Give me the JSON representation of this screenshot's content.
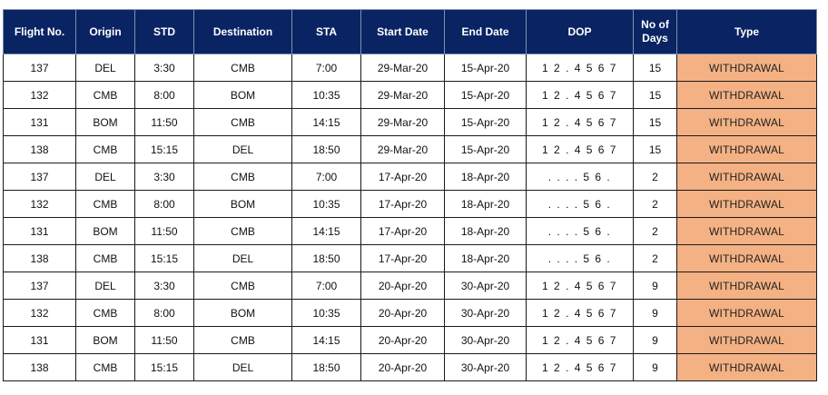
{
  "table": {
    "headers": {
      "flight_no": "Flight No.",
      "origin": "Origin",
      "std": "STD",
      "destination": "Destination",
      "sta": "STA",
      "start_date": "Start Date",
      "end_date": "End Date",
      "dop": "DOP",
      "no_of_days": "No of\nDays",
      "type": "Type"
    },
    "rows": [
      {
        "flight_no": "137",
        "origin": "DEL",
        "std": "3:30",
        "destination": "CMB",
        "sta": "7:00",
        "start_date": "29-Mar-20",
        "end_date": "15-Apr-20",
        "dop": "1 2 . 4 5 6 7",
        "days": "15",
        "type": "WITHDRAWAL"
      },
      {
        "flight_no": "132",
        "origin": "CMB",
        "std": "8:00",
        "destination": "BOM",
        "sta": "10:35",
        "start_date": "29-Mar-20",
        "end_date": "15-Apr-20",
        "dop": "1 2 . 4 5 6 7",
        "days": "15",
        "type": "WITHDRAWAL"
      },
      {
        "flight_no": "131",
        "origin": "BOM",
        "std": "11:50",
        "destination": "CMB",
        "sta": "14:15",
        "start_date": "29-Mar-20",
        "end_date": "15-Apr-20",
        "dop": "1 2 . 4 5 6 7",
        "days": "15",
        "type": "WITHDRAWAL"
      },
      {
        "flight_no": "138",
        "origin": "CMB",
        "std": "15:15",
        "destination": "DEL",
        "sta": "18:50",
        "start_date": "29-Mar-20",
        "end_date": "15-Apr-20",
        "dop": "1 2 . 4 5 6 7",
        "days": "15",
        "type": "WITHDRAWAL"
      },
      {
        "flight_no": "137",
        "origin": "DEL",
        "std": "3:30",
        "destination": "CMB",
        "sta": "7:00",
        "start_date": "17-Apr-20",
        "end_date": "18-Apr-20",
        "dop": ". . . . 5 6 .",
        "days": "2",
        "type": "WITHDRAWAL"
      },
      {
        "flight_no": "132",
        "origin": "CMB",
        "std": "8:00",
        "destination": "BOM",
        "sta": "10:35",
        "start_date": "17-Apr-20",
        "end_date": "18-Apr-20",
        "dop": ". . . . 5 6 .",
        "days": "2",
        "type": "WITHDRAWAL"
      },
      {
        "flight_no": "131",
        "origin": "BOM",
        "std": "11:50",
        "destination": "CMB",
        "sta": "14:15",
        "start_date": "17-Apr-20",
        "end_date": "18-Apr-20",
        "dop": ". . . . 5 6 .",
        "days": "2",
        "type": "WITHDRAWAL"
      },
      {
        "flight_no": "138",
        "origin": "CMB",
        "std": "15:15",
        "destination": "DEL",
        "sta": "18:50",
        "start_date": "17-Apr-20",
        "end_date": "18-Apr-20",
        "dop": ". . . . 5 6 .",
        "days": "2",
        "type": "WITHDRAWAL"
      },
      {
        "flight_no": "137",
        "origin": "DEL",
        "std": "3:30",
        "destination": "CMB",
        "sta": "7:00",
        "start_date": "20-Apr-20",
        "end_date": "30-Apr-20",
        "dop": "1 2 . 4 5 6 7",
        "days": "9",
        "type": "WITHDRAWAL"
      },
      {
        "flight_no": "132",
        "origin": "CMB",
        "std": "8:00",
        "destination": "BOM",
        "sta": "10:35",
        "start_date": "20-Apr-20",
        "end_date": "30-Apr-20",
        "dop": "1 2 . 4 5 6 7",
        "days": "9",
        "type": "WITHDRAWAL"
      },
      {
        "flight_no": "131",
        "origin": "BOM",
        "std": "11:50",
        "destination": "CMB",
        "sta": "14:15",
        "start_date": "20-Apr-20",
        "end_date": "30-Apr-20",
        "dop": "1 2 . 4 5 6 7",
        "days": "9",
        "type": "WITHDRAWAL"
      },
      {
        "flight_no": "138",
        "origin": "CMB",
        "std": "15:15",
        "destination": "DEL",
        "sta": "18:50",
        "start_date": "20-Apr-20",
        "end_date": "30-Apr-20",
        "dop": "1 2 . 4 5 6 7",
        "days": "9",
        "type": "WITHDRAWAL"
      }
    ]
  },
  "colors": {
    "header_bg": "#0a2463",
    "header_text": "#ffffff",
    "type_cell_bg": "#f4b183"
  }
}
